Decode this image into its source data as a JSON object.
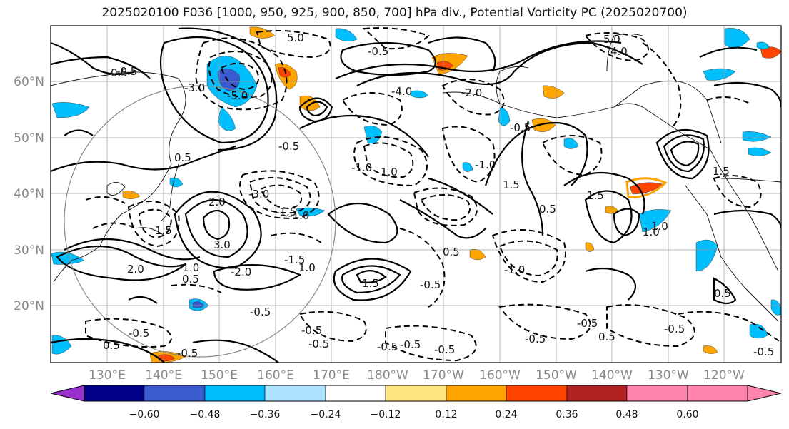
{
  "title": "2025020100 F036 [1000, 950, 925, 900, 850, 700] hPa div., Potential Vorticity PC (2025020700)",
  "lat_labels": [
    "60°N",
    "50°N",
    "40°N",
    "30°N",
    "20°N"
  ],
  "lon_labels": [
    "130°E",
    "140°E",
    "150°E",
    "160°E",
    "170°E",
    "180°W",
    "170°W",
    "160°W",
    "150°W",
    "140°W",
    "130°W",
    "120°W"
  ],
  "colorbar": {
    "ticks": [
      "−0.60",
      "−0.48",
      "−0.36",
      "−0.24",
      "−0.12",
      "0.12",
      "0.24",
      "0.36",
      "0.48",
      "0.60"
    ],
    "colors": [
      "#9932cc",
      "#00008b",
      "#3a5bcf",
      "#00bfff",
      "#aee3ff",
      "#ffffff",
      "#ffe680",
      "#ffa500",
      "#ff4500",
      "#b22222",
      "#ff85b0"
    ]
  },
  "contour_labels": [
    "-5.0",
    "-4.0",
    "-3.0",
    "-2.0",
    "-1.5",
    "-1.0",
    "-0.5",
    "0.5",
    "1.0",
    "1.5",
    "2.0",
    "3.0",
    "4.0",
    "5.0"
  ],
  "contour_label_marks": [
    {
      "text": "5.0"
    },
    {
      "text": "4.0"
    },
    {
      "text": "5.0"
    },
    {
      "text": "-5.0"
    },
    {
      "text": "-0.5"
    },
    {
      "text": "-3.0"
    },
    {
      "text": "-2.0"
    },
    {
      "text": "-4.0"
    },
    {
      "text": "0.5"
    },
    {
      "text": "-0.5"
    },
    {
      "text": "-1.5"
    },
    {
      "text": "1.0"
    },
    {
      "text": "-1.0"
    },
    {
      "text": "1.5"
    },
    {
      "text": "-1.0"
    },
    {
      "text": "0.5"
    },
    {
      "text": "2.0"
    },
    {
      "text": "3.0"
    },
    {
      "text": "1.5"
    },
    {
      "text": "-2.0"
    },
    {
      "text": "-1.5"
    },
    {
      "text": "-3.0"
    },
    {
      "text": "1.0"
    },
    {
      "text": "2.0"
    },
    {
      "text": "-0.5"
    },
    {
      "text": "1.5"
    },
    {
      "text": "-1.0"
    },
    {
      "text": "-0.5"
    },
    {
      "text": "0.5"
    },
    {
      "text": "-0.5"
    },
    {
      "text": "-0.5"
    },
    {
      "text": "-0.5"
    },
    {
      "text": "-0.5"
    },
    {
      "text": "0.5"
    },
    {
      "text": "-0.5"
    },
    {
      "text": "-1.0"
    },
    {
      "text": "1.5"
    },
    {
      "text": "0.5"
    },
    {
      "text": "1.0"
    },
    {
      "text": "-0.5"
    },
    {
      "text": "0.5"
    },
    {
      "text": "-0.5"
    },
    {
      "text": "-0.5"
    },
    {
      "text": "-0.5"
    },
    {
      "text": "-0.5"
    },
    {
      "text": "0.5"
    },
    {
      "text": "-0.5"
    },
    {
      "text": "1.5"
    },
    {
      "text": "-0.5"
    },
    {
      "text": "-0.5"
    },
    {
      "text": "0.5"
    },
    {
      "text": "-1.0"
    },
    {
      "text": "1.0"
    }
  ]
}
